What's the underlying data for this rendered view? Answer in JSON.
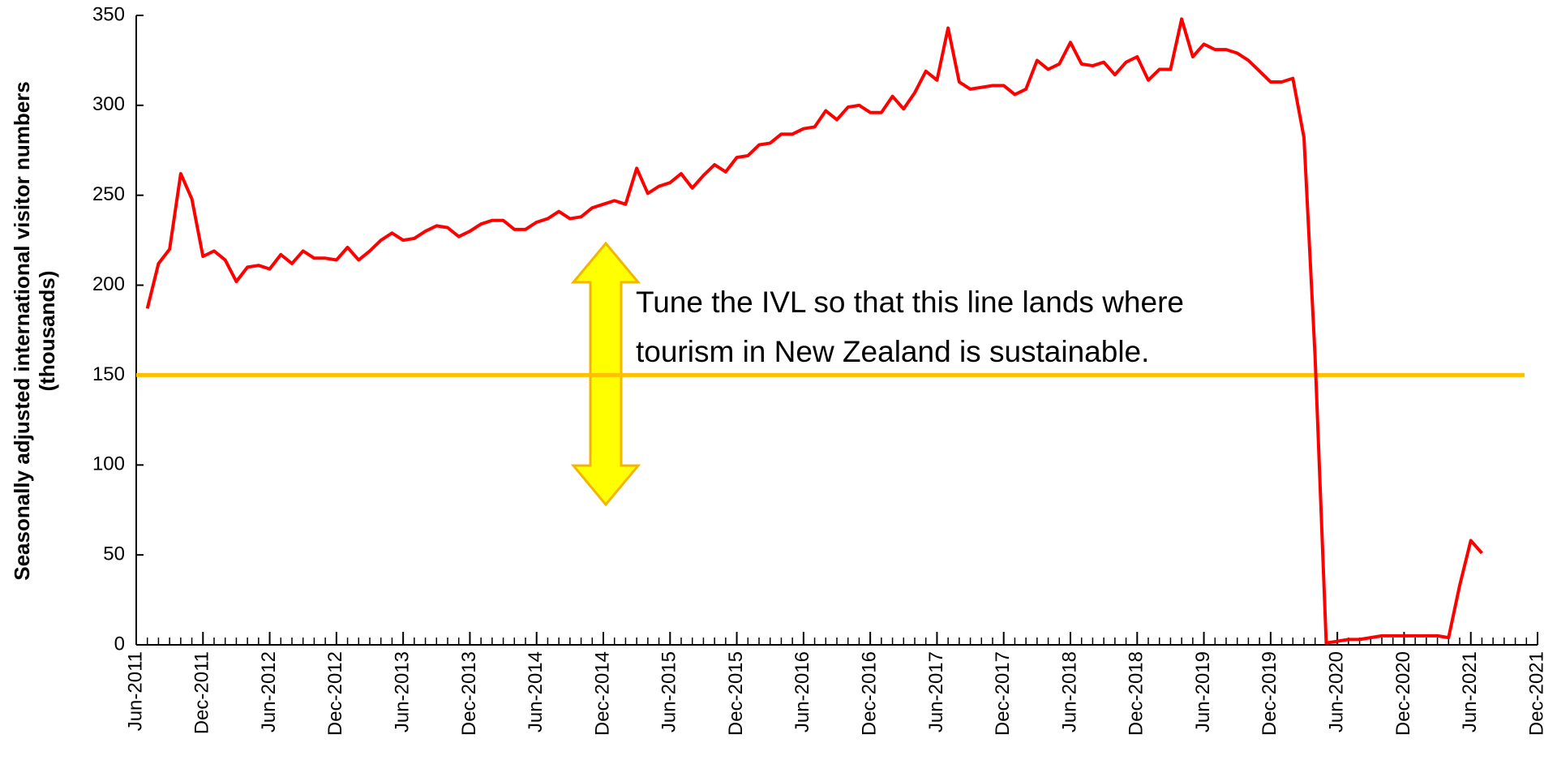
{
  "chart_data": {
    "type": "line",
    "ylabel": "Seasonally adjusted international visitor numbers (thousands)",
    "annotation": "Tune the IVL so that this line lands where tourism in New Zealand is sustainable.",
    "reference_line": {
      "value": 150,
      "color": "#ffc000"
    },
    "color": "#ff0000",
    "x": [
      "2011-07",
      "2011-08",
      "2011-09",
      "2011-10",
      "2011-11",
      "2011-12",
      "2012-01",
      "2012-02",
      "2012-03",
      "2012-04",
      "2012-05",
      "2012-06",
      "2012-07",
      "2012-08",
      "2012-09",
      "2012-10",
      "2012-11",
      "2012-12",
      "2013-01",
      "2013-02",
      "2013-03",
      "2013-04",
      "2013-05",
      "2013-06",
      "2013-07",
      "2013-08",
      "2013-09",
      "2013-10",
      "2013-11",
      "2013-12",
      "2014-01",
      "2014-02",
      "2014-03",
      "2014-04",
      "2014-05",
      "2014-06",
      "2014-07",
      "2014-08",
      "2014-09",
      "2014-10",
      "2014-11",
      "2014-12",
      "2015-01",
      "2015-02",
      "2015-03",
      "2015-04",
      "2015-05",
      "2015-06",
      "2015-07",
      "2015-08",
      "2015-09",
      "2015-10",
      "2015-11",
      "2015-12",
      "2016-01",
      "2016-02",
      "2016-03",
      "2016-04",
      "2016-05",
      "2016-06",
      "2016-07",
      "2016-08",
      "2016-09",
      "2016-10",
      "2016-11",
      "2016-12",
      "2017-01",
      "2017-02",
      "2017-03",
      "2017-04",
      "2017-05",
      "2017-06",
      "2017-07",
      "2017-08",
      "2017-09",
      "2017-10",
      "2017-11",
      "2017-12",
      "2018-01",
      "2018-02",
      "2018-03",
      "2018-04",
      "2018-05",
      "2018-06",
      "2018-07",
      "2018-08",
      "2018-09",
      "2018-10",
      "2018-11",
      "2018-12",
      "2019-01",
      "2019-02",
      "2019-03",
      "2019-04",
      "2019-05",
      "2019-06",
      "2019-07",
      "2019-08",
      "2019-09",
      "2019-10",
      "2019-11",
      "2019-12",
      "2020-01",
      "2020-02",
      "2020-03",
      "2020-04",
      "2020-05",
      "2020-06",
      "2020-07",
      "2020-08",
      "2020-09",
      "2020-10",
      "2020-11",
      "2020-12",
      "2021-01",
      "2021-02",
      "2021-03",
      "2021-04",
      "2021-05",
      "2021-06",
      "2021-07"
    ],
    "values": [
      187,
      212,
      220,
      262,
      248,
      216,
      219,
      214,
      202,
      210,
      211,
      209,
      217,
      212,
      219,
      215,
      215,
      214,
      221,
      214,
      219,
      225,
      229,
      225,
      226,
      230,
      233,
      232,
      227,
      230,
      234,
      236,
      236,
      231,
      231,
      235,
      237,
      241,
      237,
      238,
      243,
      245,
      247,
      245,
      265,
      251,
      255,
      257,
      262,
      254,
      261,
      267,
      263,
      271,
      272,
      278,
      279,
      284,
      284,
      287,
      288,
      297,
      292,
      299,
      300,
      296,
      296,
      305,
      298,
      307,
      319,
      314,
      343,
      313,
      309,
      310,
      311,
      311,
      306,
      309,
      325,
      320,
      323,
      335,
      323,
      322,
      324,
      317,
      324,
      327,
      314,
      320,
      320,
      348,
      327,
      334,
      331,
      331,
      329,
      325,
      319,
      313,
      313,
      315,
      282,
      160,
      1,
      2,
      3,
      3,
      4,
      5,
      5,
      5,
      5,
      5,
      5,
      4,
      33,
      58,
      51
    ],
    "xlim": [
      "2011-06",
      "2021-12"
    ],
    "xticks": [
      {
        "value": "2011-06",
        "label": "Jun-2011"
      },
      {
        "value": "2011-12",
        "label": "Dec-2011"
      },
      {
        "value": "2012-06",
        "label": "Jun-2012"
      },
      {
        "value": "2012-12",
        "label": "Dec-2012"
      },
      {
        "value": "2013-06",
        "label": "Jun-2013"
      },
      {
        "value": "2013-12",
        "label": "Dec-2013"
      },
      {
        "value": "2014-06",
        "label": "Jun-2014"
      },
      {
        "value": "2014-12",
        "label": "Dec-2014"
      },
      {
        "value": "2015-06",
        "label": "Jun-2015"
      },
      {
        "value": "2015-12",
        "label": "Dec-2015"
      },
      {
        "value": "2016-06",
        "label": "Jun-2016"
      },
      {
        "value": "2016-12",
        "label": "Dec-2016"
      },
      {
        "value": "2017-06",
        "label": "Jun-2017"
      },
      {
        "value": "2017-12",
        "label": "Dec-2017"
      },
      {
        "value": "2018-06",
        "label": "Jun-2018"
      },
      {
        "value": "2018-12",
        "label": "Dec-2018"
      },
      {
        "value": "2019-06",
        "label": "Jun-2019"
      },
      {
        "value": "2019-12",
        "label": "Dec-2019"
      },
      {
        "value": "2020-06",
        "label": "Jun-2020"
      },
      {
        "value": "2020-12",
        "label": "Dec-2020"
      },
      {
        "value": "2021-06",
        "label": "Jun-2021"
      },
      {
        "value": "2021-12",
        "label": "Dec-2021"
      }
    ],
    "ylim": [
      0,
      350
    ],
    "yticks": [
      0,
      50,
      100,
      150,
      200,
      250,
      300,
      350
    ],
    "grid": false
  }
}
